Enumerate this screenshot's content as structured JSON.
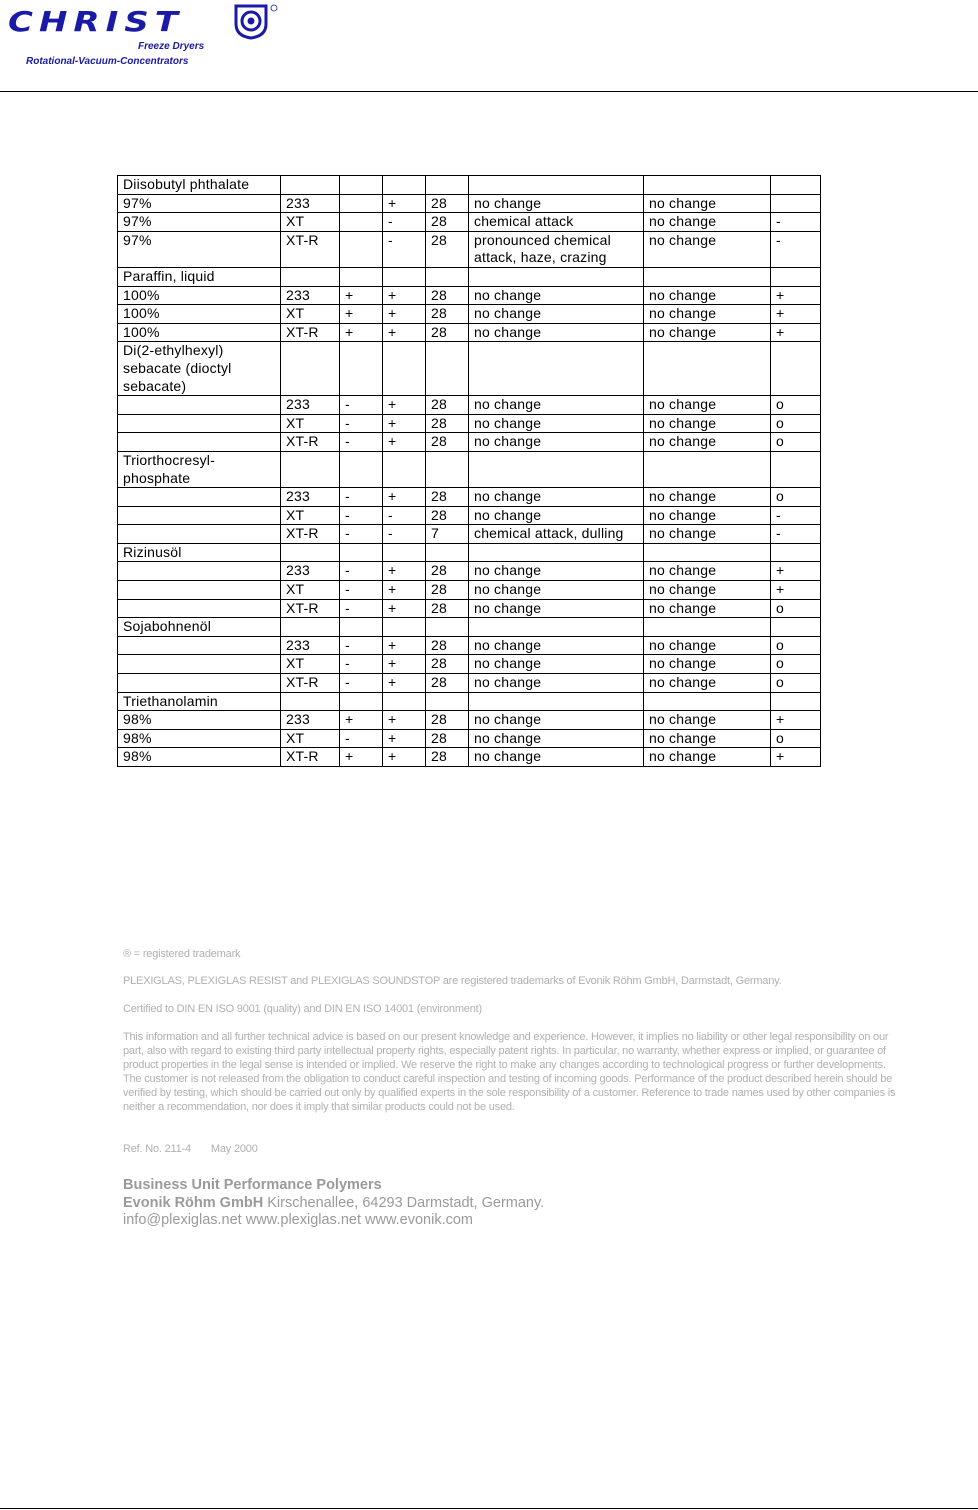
{
  "header": {
    "logo_word": "CHRIST",
    "logo_sub1": "Freeze Dryers",
    "logo_sub2": "Rotational-Vacuum-Concentrators",
    "brand_color": "#1a1aa6"
  },
  "table": {
    "rows": [
      [
        "Diisobutyl phthalate",
        "",
        "",
        "",
        "",
        "",
        "",
        ""
      ],
      [
        "97%",
        "233",
        "",
        "+",
        "28",
        "no change",
        "no change",
        ""
      ],
      [
        "97%",
        "XT",
        "",
        "-",
        "28",
        "chemical attack",
        "no change",
        "-"
      ],
      [
        "97%",
        "XT-R",
        "",
        "-",
        "28",
        "pronounced chemical attack, haze, crazing",
        "no change",
        "-"
      ],
      [
        "Paraffin, liquid",
        "",
        "",
        "",
        "",
        "",
        "",
        ""
      ],
      [
        "100%",
        "233",
        "+",
        "+",
        "28",
        "no change",
        "no change",
        "+"
      ],
      [
        "100%",
        "XT",
        "+",
        "+",
        "28",
        "no change",
        "no change",
        "+"
      ],
      [
        "100%",
        "XT-R",
        "+",
        "+",
        "28",
        "no change",
        "no change",
        "+"
      ],
      [
        "Di(2-ethylhexyl) sebacate (dioctyl sebacate)",
        "",
        "",
        "",
        "",
        "",
        "",
        ""
      ],
      [
        "",
        "233",
        "-",
        "+",
        "28",
        "no change",
        "no change",
        "o"
      ],
      [
        "",
        "XT",
        "-",
        "+",
        "28",
        "no change",
        "no change",
        "o"
      ],
      [
        "",
        "XT-R",
        "-",
        "+",
        "28",
        "no change",
        "no change",
        "o"
      ],
      [
        "Triorthocresyl-phosphate",
        "",
        "",
        "",
        "",
        "",
        "",
        ""
      ],
      [
        "",
        "233",
        "-",
        "+",
        "28",
        "no change",
        "no change",
        "o"
      ],
      [
        "",
        "XT",
        "-",
        "-",
        "28",
        "no change",
        "no change",
        "-"
      ],
      [
        "",
        "XT-R",
        "-",
        "-",
        "7",
        "chemical attack, dulling",
        "no change",
        "-"
      ],
      [
        "Rizinusöl",
        "",
        "",
        "",
        "",
        "",
        "",
        ""
      ],
      [
        "",
        "233",
        "-",
        "+",
        "28",
        "no change",
        "no change",
        "+"
      ],
      [
        "",
        "XT",
        "-",
        "+",
        "28",
        "no change",
        "no change",
        "+"
      ],
      [
        "",
        "XT-R",
        "-",
        "+",
        "28",
        "no change",
        "no change",
        "o"
      ],
      [
        "Sojabohnenöl",
        "",
        "",
        "",
        "",
        "",
        "",
        ""
      ],
      [
        "",
        "233",
        "-",
        "+",
        "28",
        "no change",
        "no change",
        "o"
      ],
      [
        "",
        "XT",
        "-",
        "+",
        "28",
        "no change",
        "no change",
        "o"
      ],
      [
        "",
        "XT-R",
        "-",
        "+",
        "28",
        "no change",
        "no change",
        "o"
      ],
      [
        "Triethanolamin",
        "",
        "",
        "",
        "",
        "",
        "",
        ""
      ],
      [
        "98%",
        "233",
        "+",
        "+",
        "28",
        "no change",
        "no change",
        "+"
      ],
      [
        "98%",
        "XT",
        "-",
        "+",
        "28",
        "no change",
        "no change",
        "o"
      ],
      [
        "98%",
        "XT-R",
        "+",
        "+",
        "28",
        "no change",
        "no change",
        "+"
      ]
    ]
  },
  "footer": {
    "trademark_note": "® = registered trademark",
    "trademarks": "PLEXIGLAS, PLEXIGLAS RESIST and PLEXIGLAS SOUNDSTOP are registered trademarks of Evonik Röhm GmbH, Darmstadt, Germany.",
    "certified": "Certified to DIN EN ISO 9001 (quality) and DIN EN ISO 14001 (environment)",
    "disclaimer": "This information and all further technical advice is based on our present knowledge and experience. However, it implies no liability or other legal responsibility on our part, also with regard to existing third party intellectual property rights, especially patent rights. In particular, no warranty, whether express or implied, or guarantee of product properties in the legal sense is intended or implied. We reserve the right to make any changes according to technological progress or further developments. The customer is not released from the obligation to conduct careful inspection and testing of incoming goods. Performance of the product described herein should be verified by testing, which should be carried out only by qualified experts in the sole responsibility of a customer. Reference to trade names used by other companies is neither a recommendation, nor does it imply that similar products could not be used.",
    "ref_no": "Ref. No. 211-4",
    "date": "May 2000",
    "business_unit": "Business Unit Performance Polymers",
    "company": "Evonik Röhm GmbH",
    "address": " Kirschenallee, 64293 Darmstadt, Germany.",
    "contacts": "info@plexiglas.net www.plexiglas.net www.evonik.com"
  }
}
